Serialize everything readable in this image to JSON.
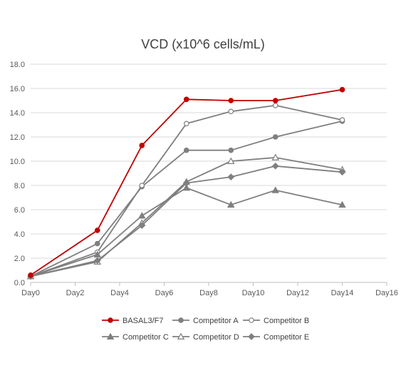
{
  "chart_data": {
    "type": "line",
    "title": "VCD (x10^6 cells/mL)",
    "xlabel": "",
    "ylabel": "",
    "xlim": [
      0,
      16
    ],
    "ylim": [
      0,
      18
    ],
    "x_ticks": [
      0,
      2,
      4,
      6,
      8,
      10,
      12,
      14,
      16
    ],
    "x_tick_labels": [
      "Day0",
      "Day2",
      "Day4",
      "Day6",
      "Day8",
      "Day10",
      "Day12",
      "Day14",
      "Day16"
    ],
    "y_ticks": [
      0,
      2,
      4,
      6,
      8,
      10,
      12,
      14,
      16,
      18
    ],
    "y_tick_labels": [
      "0.0",
      "2.0",
      "4.0",
      "6.0",
      "8.0",
      "10.0",
      "12.0",
      "14.0",
      "16.0",
      "18.0"
    ],
    "grid": "horizontal",
    "legend_position": "bottom",
    "series": [
      {
        "name": "BASAL3/F7",
        "color": "#c00000",
        "marker": "circle-filled",
        "x": [
          0,
          3,
          5,
          7,
          9,
          11,
          14
        ],
        "y": [
          0.6,
          4.3,
          11.3,
          15.1,
          15.0,
          15.0,
          15.9
        ]
      },
      {
        "name": "Competitor A",
        "color": "#7f7f7f",
        "marker": "circle-filled",
        "x": [
          0,
          3,
          5,
          7,
          9,
          11,
          14
        ],
        "y": [
          0.5,
          3.2,
          7.9,
          10.9,
          10.9,
          12.0,
          13.3
        ]
      },
      {
        "name": "Competitor B",
        "color": "#7f7f7f",
        "marker": "circle-open",
        "x": [
          0,
          3,
          5,
          7,
          9,
          11,
          14
        ],
        "y": [
          0.5,
          2.5,
          8.0,
          13.1,
          14.1,
          14.6,
          13.4
        ]
      },
      {
        "name": "Competitor C",
        "color": "#7f7f7f",
        "marker": "triangle-filled",
        "x": [
          0,
          3,
          5,
          7,
          9,
          11,
          14
        ],
        "y": [
          0.5,
          2.3,
          5.5,
          7.8,
          6.4,
          7.6,
          6.4
        ]
      },
      {
        "name": "Competitor D",
        "color": "#7f7f7f",
        "marker": "triangle-open",
        "x": [
          0,
          3,
          5,
          7,
          9,
          11,
          14
        ],
        "y": [
          0.5,
          1.7,
          4.9,
          8.3,
          10.0,
          10.3,
          9.3
        ]
      },
      {
        "name": "Competitor E",
        "color": "#7f7f7f",
        "marker": "diamond-filled",
        "x": [
          0,
          3,
          5,
          7,
          9,
          11,
          14
        ],
        "y": [
          0.5,
          1.8,
          4.7,
          8.2,
          8.7,
          9.6,
          9.1
        ]
      }
    ]
  }
}
